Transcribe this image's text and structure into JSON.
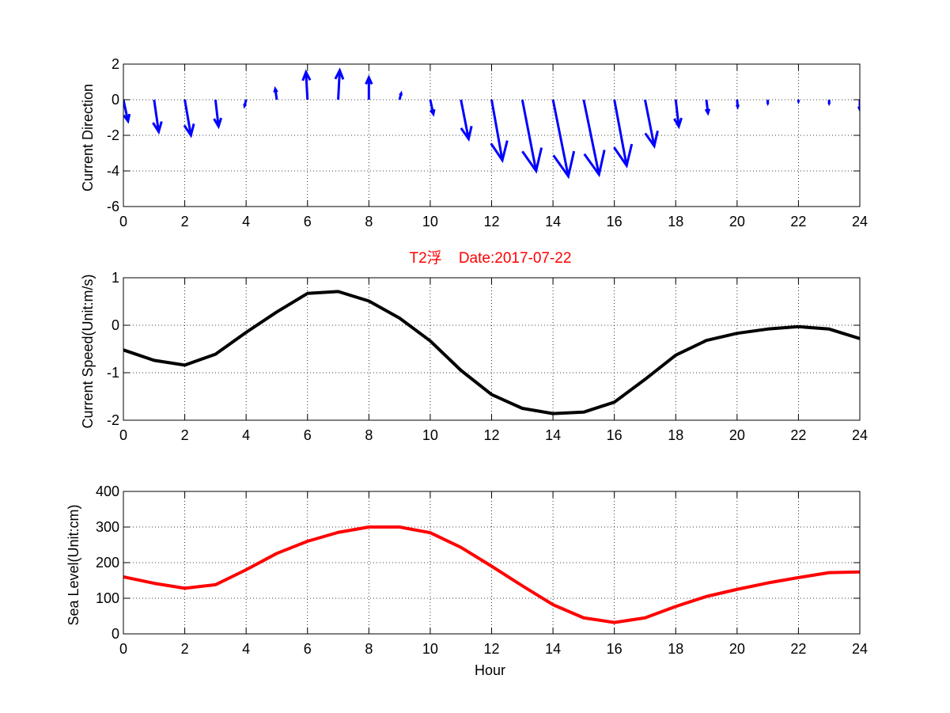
{
  "figure": {
    "title": "T2浮    Date:2017-07-22",
    "title_color": "#ff0000"
  },
  "chart_data": [
    {
      "type": "quiver",
      "ylabel": "Current Direction",
      "xlabel": "",
      "xlim": [
        0,
        24
      ],
      "ylim": [
        -6,
        2
      ],
      "xticks": [
        "0",
        "2",
        "4",
        "6",
        "8",
        "10",
        "12",
        "14",
        "16",
        "18",
        "20",
        "22",
        "24"
      ],
      "yticks": [
        "2",
        "0",
        "-2",
        "-4",
        "-6"
      ],
      "grid": true,
      "color": "#0000ff",
      "arrows": [
        {
          "x": 0,
          "u": 0.15,
          "v": -1.2
        },
        {
          "x": 1,
          "u": 0.15,
          "v": -1.8
        },
        {
          "x": 2,
          "u": 0.2,
          "v": -2.0
        },
        {
          "x": 3,
          "u": 0.1,
          "v": -1.5
        },
        {
          "x": 4,
          "u": -0.05,
          "v": -0.35
        },
        {
          "x": 5,
          "u": -0.05,
          "v": 0.6
        },
        {
          "x": 6,
          "u": -0.05,
          "v": 1.55
        },
        {
          "x": 7,
          "u": 0.05,
          "v": 1.65
        },
        {
          "x": 8,
          "u": 0.0,
          "v": 1.25
        },
        {
          "x": 9,
          "u": 0.05,
          "v": 0.35
        },
        {
          "x": 10,
          "u": 0.1,
          "v": -0.8
        },
        {
          "x": 11,
          "u": 0.25,
          "v": -2.2
        },
        {
          "x": 12,
          "u": 0.35,
          "v": -3.4
        },
        {
          "x": 13,
          "u": 0.45,
          "v": -4.0
        },
        {
          "x": 14,
          "u": 0.5,
          "v": -4.3
        },
        {
          "x": 15,
          "u": 0.5,
          "v": -4.2
        },
        {
          "x": 16,
          "u": 0.4,
          "v": -3.7
        },
        {
          "x": 17,
          "u": 0.3,
          "v": -2.6
        },
        {
          "x": 18,
          "u": 0.1,
          "v": -1.5
        },
        {
          "x": 19,
          "u": 0.05,
          "v": -0.75
        },
        {
          "x": 20,
          "u": 0.02,
          "v": -0.4
        },
        {
          "x": 21,
          "u": 0.0,
          "v": -0.2
        },
        {
          "x": 22,
          "u": 0.0,
          "v": -0.1
        },
        {
          "x": 23,
          "u": 0.0,
          "v": -0.2
        },
        {
          "x": 24,
          "u": 0.0,
          "v": -0.55
        }
      ]
    },
    {
      "type": "line",
      "ylabel": "Current Speed(Unit:m/s)",
      "xlabel": "",
      "xlim": [
        0,
        24
      ],
      "ylim": [
        -2,
        1
      ],
      "xticks": [
        "0",
        "2",
        "4",
        "6",
        "8",
        "10",
        "12",
        "14",
        "16",
        "18",
        "20",
        "22",
        "24"
      ],
      "yticks": [
        "1",
        "0",
        "-1",
        "-2"
      ],
      "grid": true,
      "series": [
        {
          "color": "#000000",
          "x": [
            0,
            1,
            2,
            3,
            4,
            5,
            6,
            7,
            8,
            9,
            10,
            11,
            12,
            13,
            14,
            15,
            16,
            17,
            18,
            19,
            20,
            21,
            22,
            23,
            24
          ],
          "values": [
            -0.52,
            -0.74,
            -0.84,
            -0.61,
            -0.15,
            0.28,
            0.67,
            0.71,
            0.51,
            0.15,
            -0.33,
            -0.95,
            -1.46,
            -1.75,
            -1.86,
            -1.83,
            -1.62,
            -1.14,
            -0.63,
            -0.32,
            -0.17,
            -0.08,
            -0.03,
            -0.08,
            -0.28
          ]
        }
      ]
    },
    {
      "type": "line",
      "ylabel": "Sea Level(Unit:cm)",
      "xlabel": "Hour",
      "xlim": [
        0,
        24
      ],
      "ylim": [
        0,
        400
      ],
      "xticks": [
        "0",
        "2",
        "4",
        "6",
        "8",
        "10",
        "12",
        "14",
        "16",
        "18",
        "20",
        "22",
        "24"
      ],
      "yticks": [
        "400",
        "300",
        "200",
        "100",
        "0"
      ],
      "grid": true,
      "series": [
        {
          "color": "#ff0000",
          "x": [
            0,
            1,
            2,
            3,
            4,
            5,
            6,
            7,
            8,
            9,
            10,
            11,
            12,
            13,
            14,
            15,
            16,
            17,
            18,
            19,
            20,
            21,
            22,
            23,
            24
          ],
          "values": [
            160,
            142,
            128,
            138,
            180,
            226,
            260,
            285,
            300,
            300,
            284,
            243,
            190,
            135,
            82,
            45,
            32,
            45,
            77,
            105,
            125,
            143,
            158,
            172,
            174
          ]
        }
      ]
    }
  ]
}
